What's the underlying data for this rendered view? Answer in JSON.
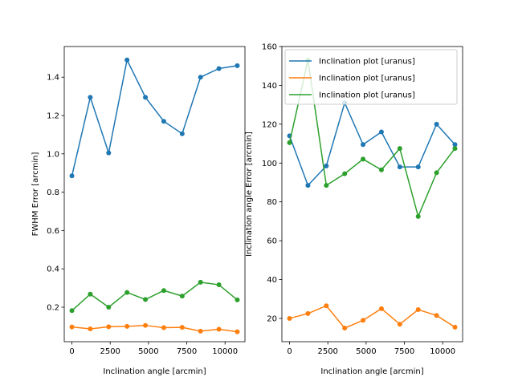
{
  "chart_data": [
    {
      "type": "line",
      "xlabel": "Inclination angle [arcmin]",
      "ylabel": "FWHM Error [arcmin]",
      "xlim": [
        -500,
        11300
      ],
      "ylim": [
        0.02,
        1.56
      ],
      "xticks": [
        0,
        2500,
        5000,
        7500,
        10000
      ],
      "yticks": [
        0.2,
        0.4,
        0.6,
        0.8,
        1.0,
        1.2,
        1.4
      ],
      "x": [
        0,
        1200,
        2400,
        3600,
        4800,
        6000,
        7200,
        8400,
        9600,
        10800
      ],
      "series": [
        {
          "color": "#1f77b4",
          "values": [
            0.885,
            1.295,
            1.005,
            1.49,
            1.295,
            1.17,
            1.105,
            1.4,
            1.445,
            1.46
          ]
        },
        {
          "color": "#ff7f0e",
          "values": [
            0.097,
            0.087,
            0.098,
            0.1,
            0.105,
            0.093,
            0.095,
            0.075,
            0.085,
            0.072
          ]
        },
        {
          "color": "#2ca02c",
          "values": [
            0.182,
            0.268,
            0.2,
            0.277,
            0.24,
            0.287,
            0.258,
            0.33,
            0.317,
            0.238
          ]
        }
      ]
    },
    {
      "type": "line",
      "xlabel": "Inclination angle [arcmin]",
      "ylabel": "Inclination angle Error [arcmin]",
      "xlim": [
        -500,
        11300
      ],
      "ylim": [
        8,
        160
      ],
      "xticks": [
        0,
        2500,
        5000,
        7500,
        10000
      ],
      "yticks": [
        20,
        40,
        60,
        80,
        100,
        120,
        140,
        160
      ],
      "legend": "top-right",
      "x": [
        0,
        1200,
        2400,
        3600,
        4800,
        6000,
        7200,
        8400,
        9600,
        10800
      ],
      "series": [
        {
          "name": "Inclination plot [uranus]",
          "color": "#1f77b4",
          "values": [
            114,
            88.5,
            98.5,
            131,
            109.5,
            116,
            98,
            98,
            120,
            109.5
          ]
        },
        {
          "name": "Inclination plot [uranus]",
          "color": "#ff7f0e",
          "values": [
            20,
            22.5,
            26.5,
            15,
            19,
            25,
            17,
            24.5,
            21.5,
            15.5
          ]
        },
        {
          "name": "Inclination plot [uranus]",
          "color": "#2ca02c",
          "values": [
            110.5,
            153,
            88.5,
            94.5,
            102,
            96.5,
            107.5,
            72.5,
            95,
            107.5
          ]
        }
      ]
    }
  ]
}
